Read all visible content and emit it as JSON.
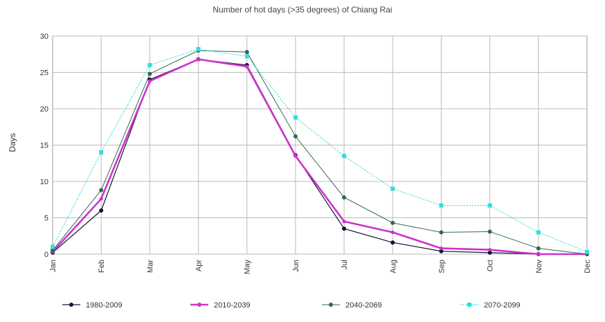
{
  "chart_data": {
    "type": "line",
    "title": "Number of hot days (>35 degrees) of Chiang Rai",
    "xlabel": "",
    "ylabel": "Days",
    "ylim": [
      0,
      30
    ],
    "yticks": [
      "0",
      "5",
      "10",
      "15",
      "20",
      "25",
      "30"
    ],
    "categories": [
      "Jan",
      "Feb",
      "Mar",
      "Apr",
      "May",
      "Jun",
      "Jul",
      "Aug",
      "Sep",
      "Oct",
      "Nov",
      "Dec"
    ],
    "grid": true,
    "legend_position": "bottom",
    "series": [
      {
        "name": "1980-2009",
        "color": "#111133",
        "values": [
          0.2,
          6.0,
          24.0,
          26.8,
          26.0,
          13.6,
          3.5,
          1.6,
          0.4,
          0.2,
          0.0,
          0.0
        ]
      },
      {
        "name": "2010-2039",
        "color": "#cc33cc",
        "values": [
          0.3,
          7.6,
          23.8,
          26.8,
          25.8,
          13.5,
          4.5,
          3.0,
          0.8,
          0.6,
          0.0,
          0.0
        ]
      },
      {
        "name": "2040-2069",
        "color": "#336655",
        "values": [
          0.5,
          8.8,
          24.8,
          28.0,
          27.8,
          16.2,
          7.8,
          4.3,
          3.0,
          3.1,
          0.8,
          0.0
        ]
      },
      {
        "name": "2070-2099",
        "color": "#33dddd",
        "values": [
          1.0,
          14.0,
          26.0,
          28.2,
          27.2,
          18.8,
          13.5,
          9.0,
          6.7,
          6.7,
          3.0,
          0.3
        ]
      }
    ]
  }
}
